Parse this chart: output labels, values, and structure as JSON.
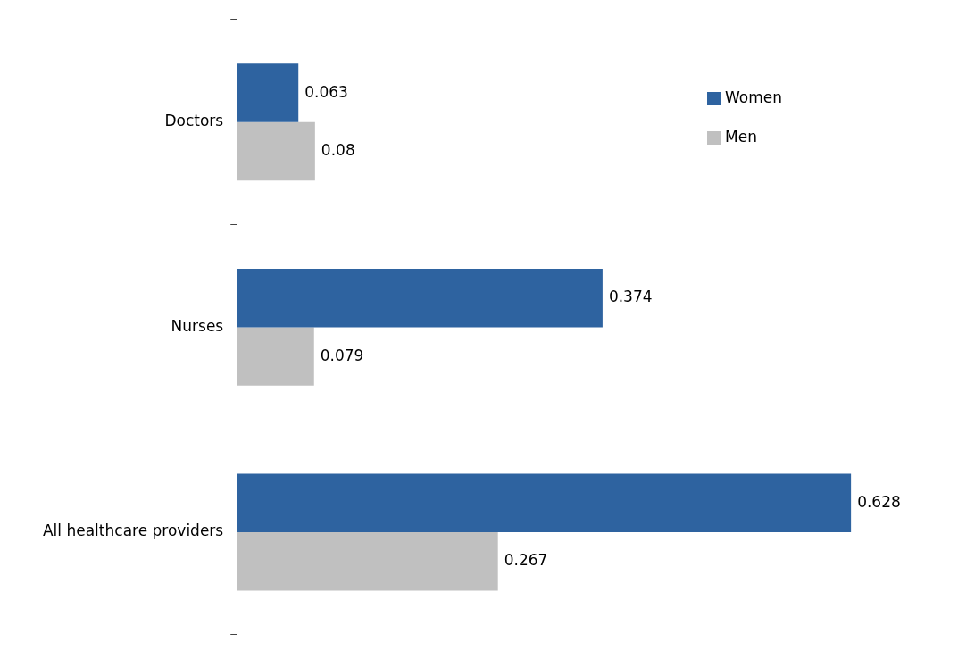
{
  "chart_data": {
    "type": "bar",
    "orientation": "horizontal",
    "categories": [
      "Doctors",
      "Nurses",
      "All healthcare providers"
    ],
    "series": [
      {
        "name": "Women",
        "color": "#2e63a0",
        "values": [
          0.063,
          0.374,
          0.628
        ]
      },
      {
        "name": "Men",
        "color": "#c0c0c0",
        "values": [
          0.08,
          0.079,
          0.267
        ]
      }
    ],
    "data_labels": true,
    "legend": "top right"
  }
}
